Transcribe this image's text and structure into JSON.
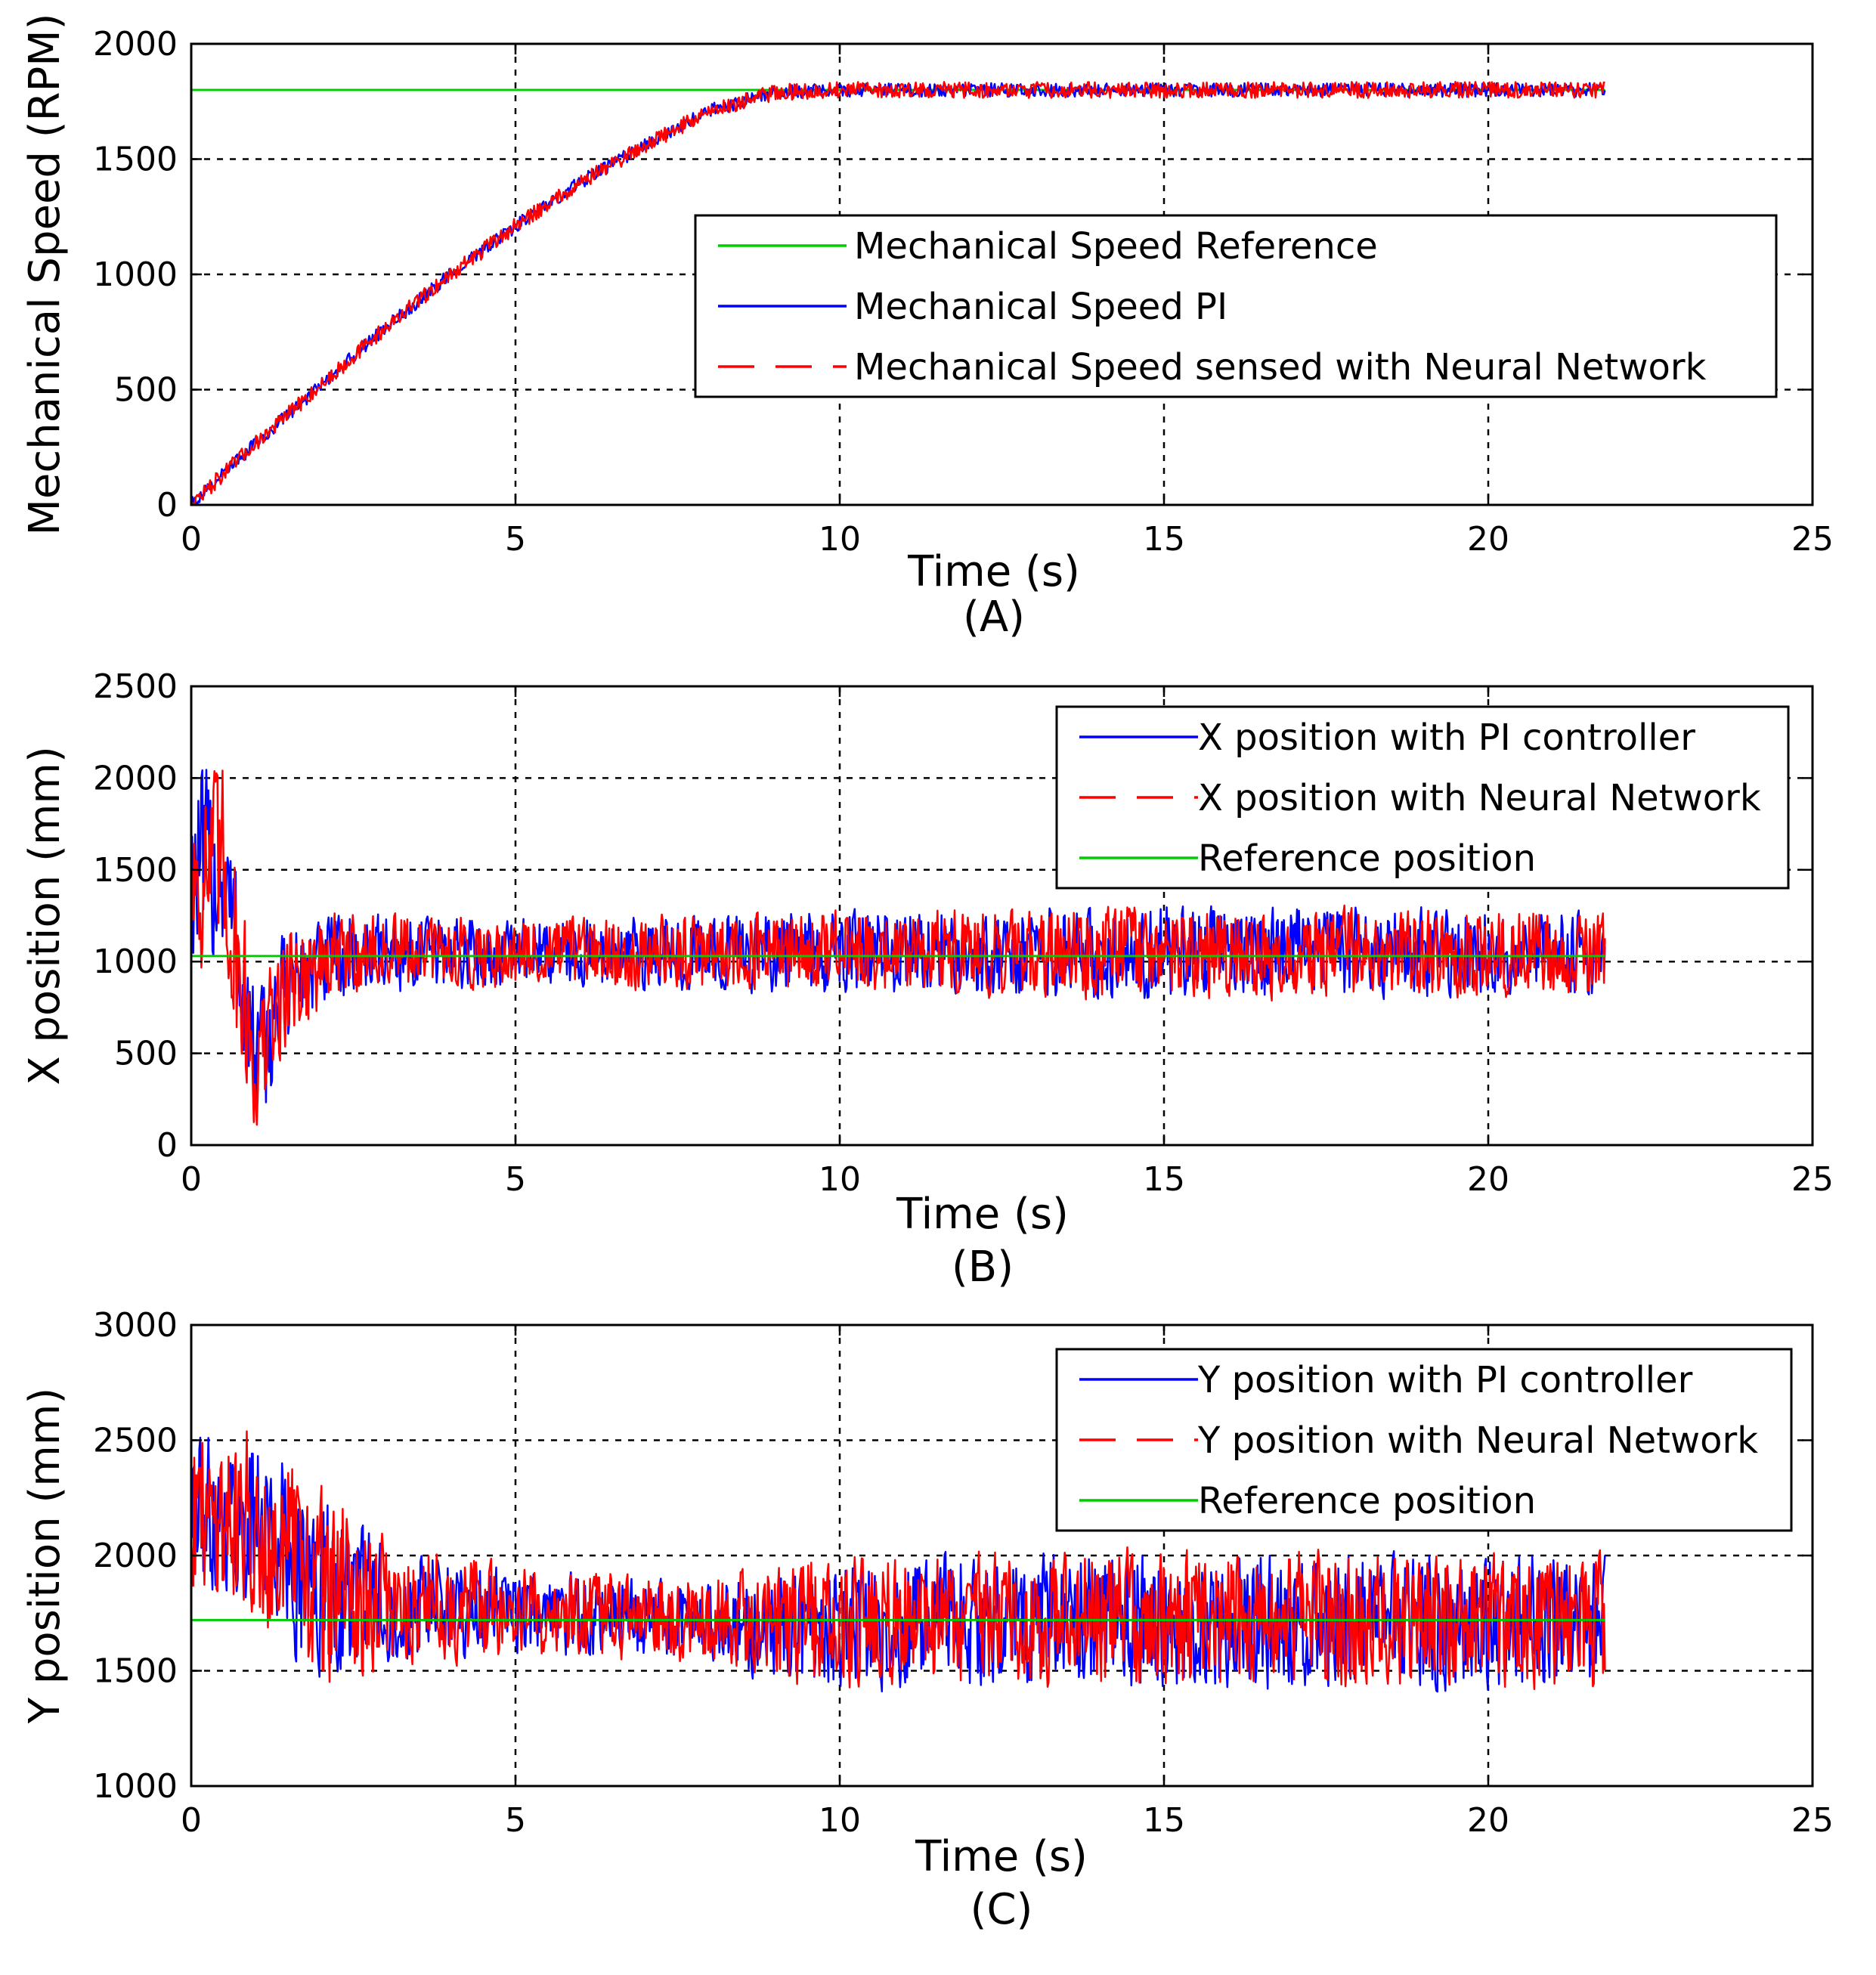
{
  "chart_data": [
    {
      "type": "line",
      "panel": "A",
      "caption": "(A)",
      "xlabel": "Time (s)",
      "ylabel": "Mechanical Speed (RPM)",
      "xlim": [
        0,
        25
      ],
      "ylim": [
        0,
        2000
      ],
      "xticks": [
        0,
        5,
        10,
        15,
        20,
        25
      ],
      "yticks": [
        0,
        500,
        1000,
        1500,
        2000
      ],
      "grid": true,
      "legend_position": "center-right",
      "series": [
        {
          "name": "Mechanical Speed Reference",
          "color": "#00cc00",
          "style": "solid",
          "x": [
            0,
            21.8
          ],
          "y": [
            1800,
            1800
          ]
        },
        {
          "name": "Mechanical Speed PI",
          "color": "#0000ff",
          "style": "solid",
          "x": [
            0,
            1,
            2,
            3,
            4,
            5,
            6,
            7,
            8,
            9,
            10,
            12,
            15,
            18,
            21.8
          ],
          "y": [
            0,
            270,
            520,
            770,
            1000,
            1210,
            1400,
            1560,
            1710,
            1790,
            1800,
            1800,
            1800,
            1800,
            1800
          ],
          "noise_amplitude": 30
        },
        {
          "name": "Mechanical Speed sensed with Neural Network",
          "color": "#ff0000",
          "style": "dashed",
          "x": [
            0,
            1,
            2,
            3,
            4,
            5,
            6,
            7,
            8,
            9,
            10,
            12,
            15,
            18,
            21.8
          ],
          "y": [
            0,
            270,
            520,
            770,
            1000,
            1210,
            1400,
            1560,
            1710,
            1790,
            1800,
            1800,
            1800,
            1800,
            1800
          ],
          "noise_amplitude": 35
        }
      ]
    },
    {
      "type": "line",
      "panel": "B",
      "caption": "(B)",
      "xlabel": "Time (s)",
      "ylabel": "X position (mm)",
      "xlim": [
        0,
        25
      ],
      "ylim": [
        0,
        2500
      ],
      "xticks": [
        0,
        5,
        10,
        15,
        20,
        25
      ],
      "yticks": [
        0,
        500,
        1000,
        1500,
        2000,
        2500
      ],
      "grid": true,
      "legend_position": "top-right",
      "series": [
        {
          "name": "X position with PI controller",
          "color": "#0000ff",
          "style": "solid",
          "x": [
            0,
            0.5,
            1.0,
            1.5,
            2.5,
            5,
            10,
            15,
            20,
            21.8
          ],
          "y": [
            1500,
            1500,
            400,
            900,
            1050,
            1050,
            1050,
            1050,
            1050,
            1050
          ],
          "band_half_width": [
            600,
            600,
            450,
            350,
            250,
            200,
            250,
            280,
            260,
            260
          ]
        },
        {
          "name": "X position with Neural Network",
          "color": "#ff0000",
          "style": "dashed",
          "x": [
            0,
            0.5,
            1.0,
            1.5,
            2.5,
            5,
            10,
            15,
            20,
            21.8
          ],
          "y": [
            1500,
            1500,
            400,
            900,
            1050,
            1050,
            1050,
            1050,
            1050,
            1050
          ],
          "band_half_width": [
            650,
            650,
            450,
            350,
            250,
            200,
            250,
            280,
            260,
            260
          ]
        },
        {
          "name": "Reference position",
          "color": "#00cc00",
          "style": "solid",
          "x": [
            0,
            21.8
          ],
          "y": [
            1030,
            1030
          ]
        }
      ]
    },
    {
      "type": "line",
      "panel": "C",
      "caption": "(C)",
      "xlabel": "Time (s)",
      "ylabel": "Y position (mm)",
      "xlim": [
        0,
        25
      ],
      "ylim": [
        1000,
        3000
      ],
      "xticks": [
        0,
        5,
        10,
        15,
        20,
        25
      ],
      "yticks": [
        1000,
        1500,
        2000,
        2500,
        3000
      ],
      "grid": true,
      "legend_position": "top-right",
      "series": [
        {
          "name": "Y position with PI controller",
          "color": "#0000ff",
          "style": "solid",
          "x": [
            0,
            1,
            2,
            3,
            5,
            8,
            9,
            12,
            15,
            18,
            21.8
          ],
          "y": [
            2200,
            2150,
            1850,
            1800,
            1750,
            1720,
            1700,
            1720,
            1720,
            1720,
            1720
          ],
          "band_half_width": [
            350,
            400,
            450,
            280,
            200,
            180,
            300,
            320,
            330,
            320,
            320
          ]
        },
        {
          "name": "Y position with Neural Network",
          "color": "#ff0000",
          "style": "dashed",
          "x": [
            0,
            1,
            2,
            3,
            5,
            8,
            9,
            12,
            15,
            18,
            21.8
          ],
          "y": [
            2200,
            2150,
            1850,
            1800,
            1750,
            1720,
            1700,
            1720,
            1720,
            1720,
            1720
          ],
          "band_half_width": [
            380,
            450,
            500,
            300,
            220,
            200,
            300,
            320,
            330,
            320,
            320
          ]
        },
        {
          "name": "Reference position",
          "color": "#00cc00",
          "style": "solid",
          "x": [
            0,
            21.8
          ],
          "y": [
            1720,
            1720
          ]
        }
      ]
    }
  ]
}
